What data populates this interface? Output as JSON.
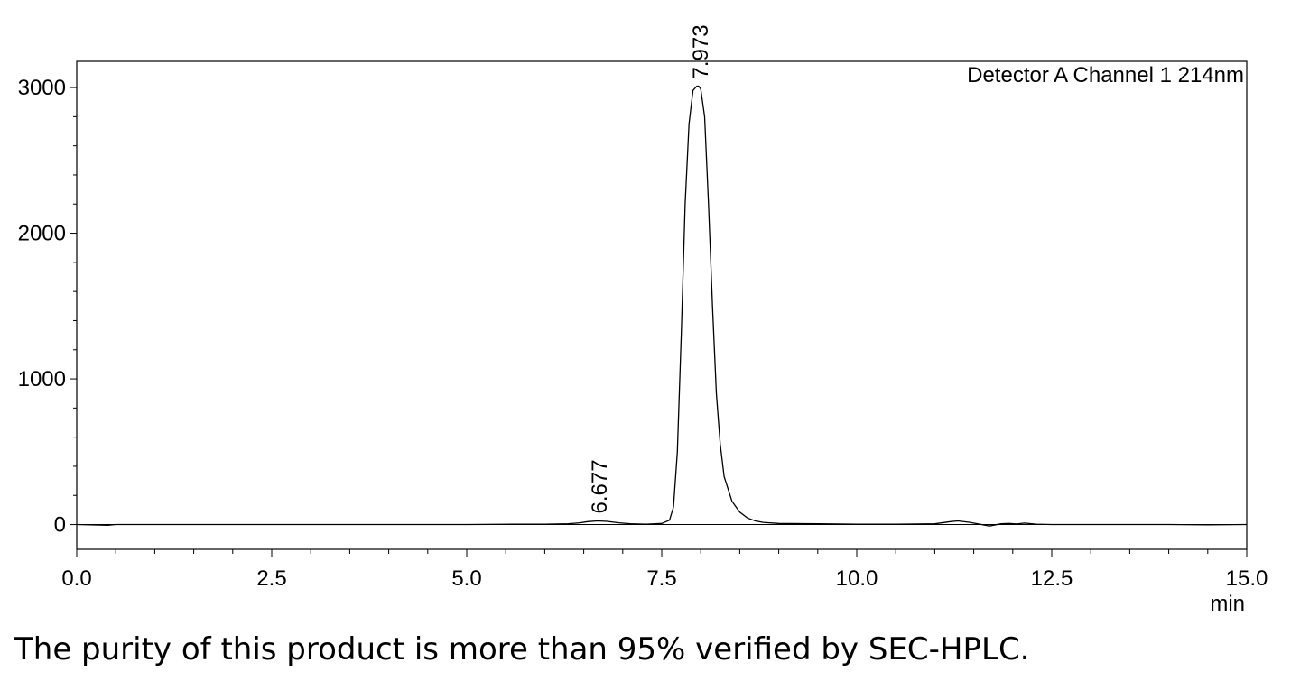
{
  "chart_data": {
    "type": "line",
    "title": "",
    "legend": "Detector A Channel 1 214nm",
    "xlabel": "min",
    "ylabel": "",
    "xlim": [
      0,
      15
    ],
    "ylim": [
      -170,
      3180
    ],
    "x_ticks": [
      "0.0",
      "2.5",
      "5.0",
      "7.5",
      "10.0",
      "12.5",
      "15.0"
    ],
    "y_ticks": [
      "0",
      "1000",
      "2000",
      "3000"
    ],
    "peaks": [
      {
        "rt": 6.677,
        "label": "6.677",
        "height": 25
      },
      {
        "rt": 7.973,
        "label": "7.973",
        "height": 3010
      }
    ],
    "series": [
      {
        "x": [
          0,
          0.4,
          0.5,
          1,
          2,
          3,
          4,
          5,
          5.6,
          6.0,
          6.3,
          6.45,
          6.55,
          6.677,
          6.8,
          6.95,
          7.1,
          7.3,
          7.5,
          7.6,
          7.65,
          7.7,
          7.75,
          7.8,
          7.85,
          7.9,
          7.95,
          7.973,
          8.0,
          8.05,
          8.1,
          8.15,
          8.2,
          8.25,
          8.3,
          8.4,
          8.5,
          8.6,
          8.7,
          8.8,
          9.0,
          9.5,
          10,
          10.5,
          11.0,
          11.2,
          11.3,
          11.45,
          11.6,
          11.7,
          11.85,
          11.95,
          12.05,
          12.15,
          12.3,
          12.5,
          13,
          13.5,
          14,
          14.5,
          15
        ],
        "y": [
          0,
          -5,
          0,
          0,
          0,
          0,
          0,
          0,
          2,
          3,
          5,
          12,
          20,
          25,
          22,
          12,
          6,
          3,
          8,
          30,
          120,
          500,
          1300,
          2200,
          2750,
          2980,
          3010,
          3010,
          2990,
          2800,
          2200,
          1500,
          900,
          550,
          330,
          160,
          85,
          45,
          25,
          15,
          8,
          5,
          3,
          2,
          5,
          20,
          25,
          15,
          0,
          -10,
          5,
          8,
          4,
          10,
          3,
          0,
          0,
          0,
          0,
          -2,
          0
        ]
      }
    ]
  },
  "caption": "The purity of this product is more than 95% verified by SEC-HPLC."
}
